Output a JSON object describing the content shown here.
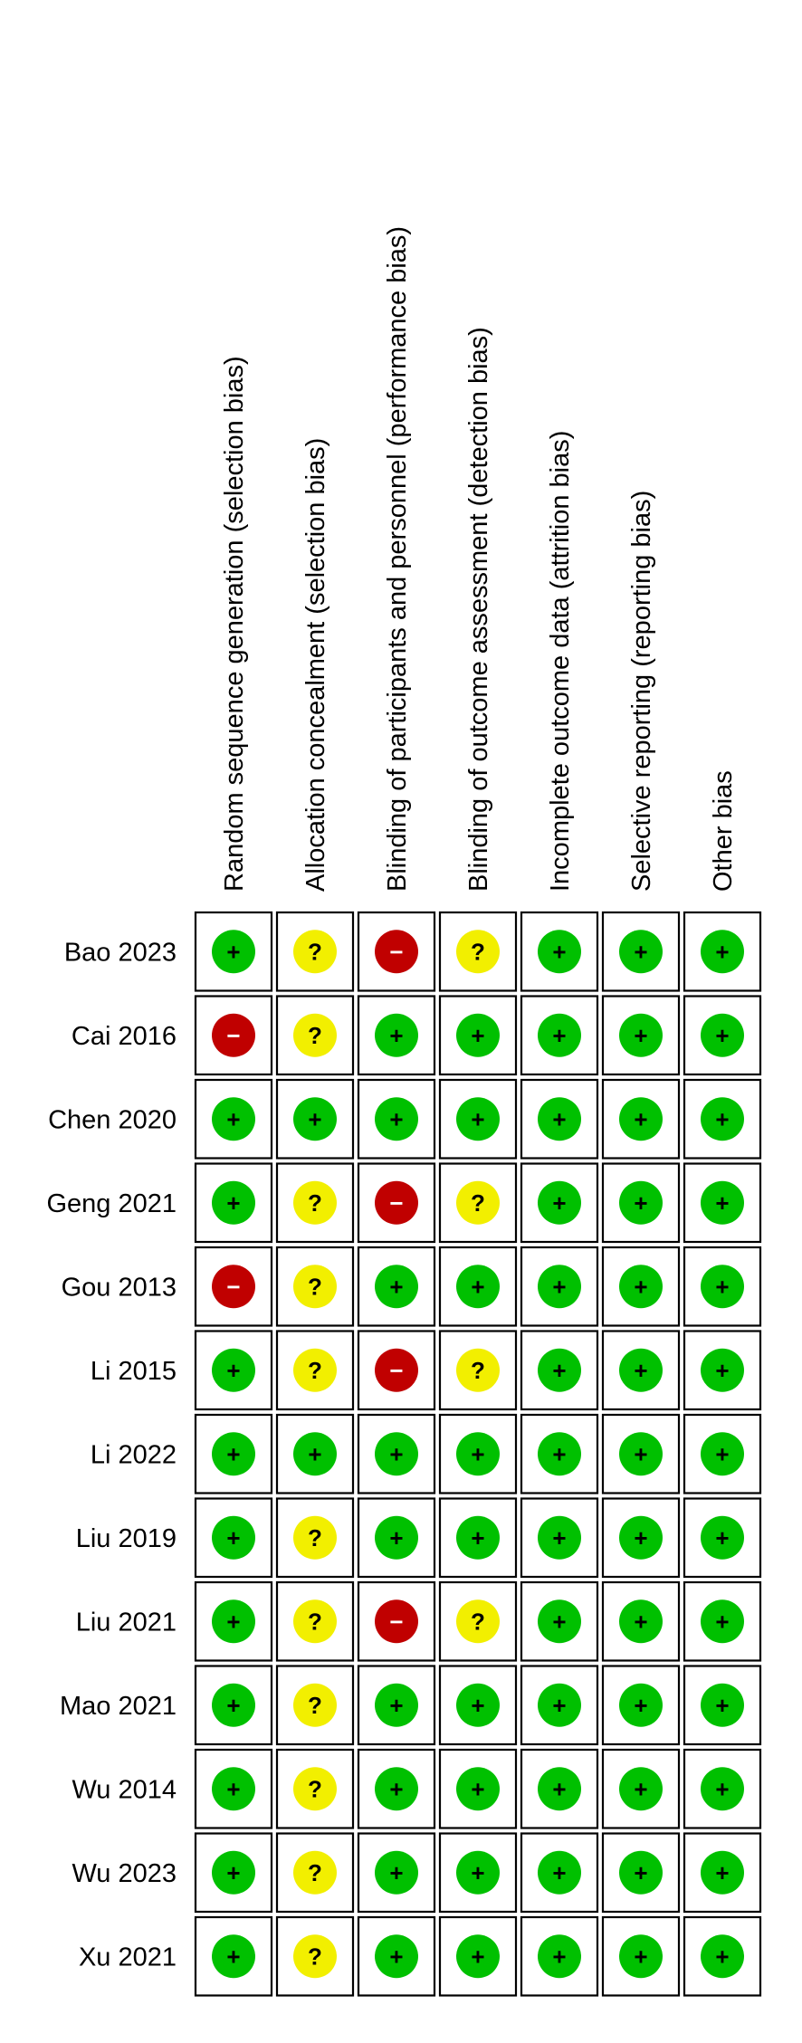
{
  "domains": [
    "Random sequence generation (selection bias)",
    "Allocation concealment (selection bias)",
    "Blinding of participants and personnel (performance bias)",
    "Blinding of outcome assessment (detection bias)",
    "Incomplete outcome data (attrition bias)",
    "Selective reporting (reporting bias)",
    "Other bias"
  ],
  "studies": [
    {
      "name": "Bao 2023",
      "ratings": [
        "low",
        "unclear",
        "high",
        "unclear",
        "low",
        "low",
        "low"
      ]
    },
    {
      "name": "Cai 2016",
      "ratings": [
        "high",
        "unclear",
        "low",
        "low",
        "low",
        "low",
        "low"
      ]
    },
    {
      "name": "Chen 2020",
      "ratings": [
        "low",
        "low",
        "low",
        "low",
        "low",
        "low",
        "low"
      ]
    },
    {
      "name": "Geng 2021",
      "ratings": [
        "low",
        "unclear",
        "high",
        "unclear",
        "low",
        "low",
        "low"
      ]
    },
    {
      "name": "Gou 2013",
      "ratings": [
        "high",
        "unclear",
        "low",
        "low",
        "low",
        "low",
        "low"
      ]
    },
    {
      "name": "Li 2015",
      "ratings": [
        "low",
        "unclear",
        "high",
        "unclear",
        "low",
        "low",
        "low"
      ]
    },
    {
      "name": "Li 2022",
      "ratings": [
        "low",
        "low",
        "low",
        "low",
        "low",
        "low",
        "low"
      ]
    },
    {
      "name": "Liu 2019",
      "ratings": [
        "low",
        "unclear",
        "low",
        "low",
        "low",
        "low",
        "low"
      ]
    },
    {
      "name": "Liu 2021",
      "ratings": [
        "low",
        "unclear",
        "high",
        "unclear",
        "low",
        "low",
        "low"
      ]
    },
    {
      "name": "Mao 2021",
      "ratings": [
        "low",
        "unclear",
        "low",
        "low",
        "low",
        "low",
        "low"
      ]
    },
    {
      "name": "Wu 2014",
      "ratings": [
        "low",
        "unclear",
        "low",
        "low",
        "low",
        "low",
        "low"
      ]
    },
    {
      "name": "Wu 2023",
      "ratings": [
        "low",
        "unclear",
        "low",
        "low",
        "low",
        "low",
        "low"
      ]
    },
    {
      "name": "Xu 2021",
      "ratings": [
        "low",
        "unclear",
        "low",
        "low",
        "low",
        "low",
        "low"
      ]
    }
  ],
  "rating_styles": {
    "low": {
      "symbol": "+",
      "color": "#00c000",
      "text_color": "#000000"
    },
    "unclear": {
      "symbol": "?",
      "color": "#f2ef00",
      "text_color": "#000000"
    },
    "high": {
      "symbol": "−",
      "color": "#c00000",
      "text_color": "#ffffff"
    }
  }
}
